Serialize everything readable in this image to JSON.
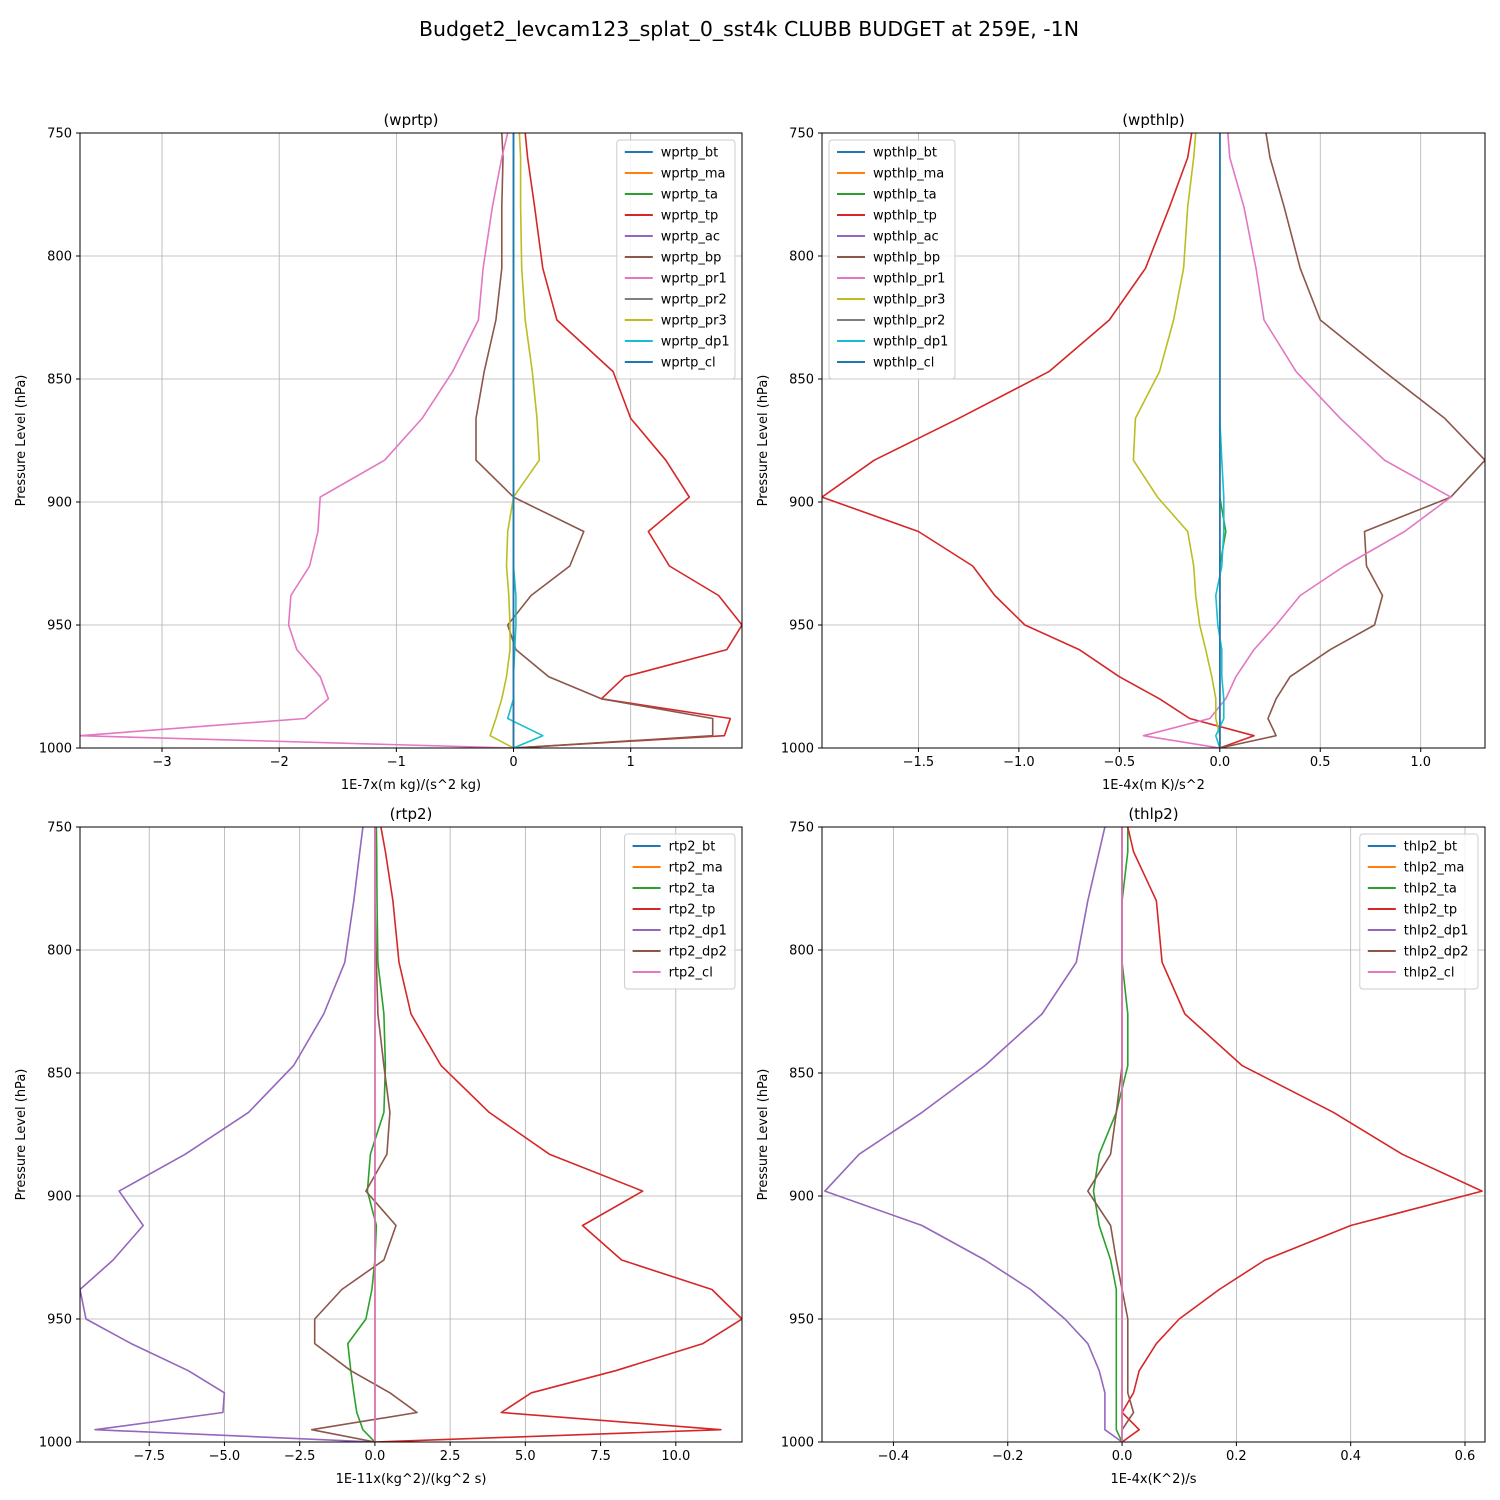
{
  "figure": {
    "title": "Budget2_levcam123_splat_0_sst4k CLUBB BUDGET at 259E, -1N"
  },
  "colors": {
    "c0": "#1f77b4",
    "c1": "#ff7f0e",
    "c2": "#2ca02c",
    "c3": "#d62728",
    "c4": "#9467bd",
    "c5": "#8c564b",
    "c6": "#e377c2",
    "c7": "#7f7f7f",
    "c8": "#bcbd22",
    "c9": "#17becf",
    "grid": "#b0b0b0"
  },
  "chart_data": [
    {
      "type": "line",
      "title": "(wprtp)",
      "xlabel": "1E-7x(m kg)/(s^2 kg)",
      "ylabel": "Pressure Level (hPa)",
      "xlim": [
        -3.7,
        1.95
      ],
      "ylim": [
        1000,
        750
      ],
      "y_inverted": true,
      "xticks": [
        -3,
        -2,
        -1,
        0,
        1
      ],
      "xtick_labels": [
        "−3",
        "−2",
        "−1",
        "0",
        "1"
      ],
      "yticks": [
        750,
        800,
        850,
        900,
        950,
        1000
      ],
      "grid": true,
      "legend_position": "top-right",
      "pressure_levels": [
        750,
        760,
        780,
        805,
        826,
        847,
        866,
        883,
        898,
        912,
        926,
        938,
        950,
        960,
        971,
        980,
        988,
        995,
        1000
      ],
      "series": [
        {
          "name": "wprtp_bt",
          "color_key": "c0",
          "values": [
            0,
            0,
            0,
            0,
            0,
            0,
            0,
            0,
            0,
            0,
            0,
            0,
            0,
            0,
            0,
            0,
            0,
            0,
            0
          ]
        },
        {
          "name": "wprtp_ma",
          "color_key": "c1",
          "values": [
            0,
            0,
            0,
            0,
            0,
            0,
            0,
            0,
            0,
            0,
            0,
            0,
            0,
            0,
            0,
            0,
            0,
            0,
            0
          ]
        },
        {
          "name": "wprtp_ta",
          "color_key": "c2",
          "values": [
            0,
            0,
            0,
            0,
            0,
            0,
            0,
            0,
            0,
            0,
            0,
            0,
            0,
            0,
            0,
            0,
            0,
            0,
            0
          ]
        },
        {
          "name": "wprtp_tp",
          "color_key": "c3",
          "values": [
            0.1,
            0.12,
            0.18,
            0.25,
            0.37,
            0.85,
            1.0,
            1.3,
            1.5,
            1.15,
            1.33,
            1.75,
            1.95,
            1.82,
            0.95,
            0.75,
            1.85,
            1.8,
            0
          ]
        },
        {
          "name": "wprtp_ac",
          "color_key": "c4",
          "values": [
            0,
            0,
            0,
            0,
            0,
            0,
            0,
            0,
            0,
            0,
            0,
            0,
            0,
            0,
            0,
            0,
            0,
            0,
            0
          ]
        },
        {
          "name": "wprtp_bp",
          "color_key": "c5",
          "values": [
            -0.1,
            -0.09,
            -0.1,
            -0.1,
            -0.15,
            -0.25,
            -0.32,
            -0.32,
            0.0,
            0.6,
            0.48,
            0.15,
            -0.05,
            0.02,
            0.3,
            0.75,
            1.7,
            1.7,
            0
          ]
        },
        {
          "name": "wprtp_pr1",
          "color_key": "c6",
          "values": [
            -0.05,
            -0.1,
            -0.18,
            -0.26,
            -0.3,
            -0.52,
            -0.78,
            -1.1,
            -1.65,
            -1.67,
            -1.74,
            -1.9,
            -1.92,
            -1.85,
            -1.65,
            -1.58,
            -1.78,
            -3.7,
            0
          ]
        },
        {
          "name": "wprtp_pr2",
          "color_key": "c7",
          "values": [
            0,
            0,
            0,
            0,
            0,
            0,
            0,
            0,
            0,
            0,
            0,
            0,
            0,
            0,
            0,
            0,
            0,
            0,
            0
          ]
        },
        {
          "name": "wprtp_pr3",
          "color_key": "c8",
          "values": [
            0.05,
            0.06,
            0.06,
            0.07,
            0.1,
            0.16,
            0.2,
            0.22,
            0.0,
            -0.05,
            -0.06,
            -0.04,
            -0.03,
            -0.03,
            -0.06,
            -0.1,
            -0.15,
            -0.2,
            0
          ]
        },
        {
          "name": "wprtp_dp1",
          "color_key": "c9",
          "values": [
            0,
            0,
            0,
            0,
            0,
            0,
            0,
            0,
            0,
            0,
            0,
            0.02,
            0.02,
            0.01,
            0,
            0,
            -0.05,
            0.25,
            0
          ]
        },
        {
          "name": "wprtp_cl",
          "color_key": "c0",
          "values": [
            0,
            0,
            0,
            0,
            0,
            0,
            0,
            0,
            0,
            0,
            0,
            0,
            0,
            0,
            0,
            0,
            0,
            0,
            0
          ]
        }
      ]
    },
    {
      "type": "line",
      "title": "(wpthlp)",
      "xlabel": "1E-4x(m K)/s^2",
      "ylabel": "Pressure Level (hPa)",
      "xlim": [
        -1.98,
        1.32
      ],
      "ylim": [
        1000,
        750
      ],
      "y_inverted": true,
      "xticks": [
        -1.5,
        -1.0,
        -0.5,
        0.0,
        0.5,
        1.0
      ],
      "xtick_labels": [
        "−1.5",
        "−1.0",
        "−0.5",
        "0.0",
        "0.5",
        "1.0"
      ],
      "yticks": [
        750,
        800,
        850,
        900,
        950,
        1000
      ],
      "grid": true,
      "legend_position": "top-left",
      "pressure_levels": [
        750,
        760,
        780,
        805,
        826,
        847,
        866,
        883,
        898,
        912,
        926,
        938,
        950,
        960,
        971,
        980,
        988,
        995,
        1000
      ],
      "series": [
        {
          "name": "wpthlp_bt",
          "color_key": "c0",
          "values": [
            0,
            0,
            0,
            0,
            0,
            0,
            0,
            0,
            0,
            0,
            0,
            0,
            0,
            0,
            0,
            0,
            0,
            0,
            0
          ]
        },
        {
          "name": "wpthlp_ma",
          "color_key": "c1",
          "values": [
            0,
            0,
            0,
            0,
            0,
            0,
            0,
            0,
            0,
            0,
            0,
            0,
            0,
            0,
            0,
            0,
            0,
            0,
            0
          ]
        },
        {
          "name": "wpthlp_ta",
          "color_key": "c2",
          "values": [
            0,
            0,
            0,
            0,
            0,
            0,
            0,
            0,
            0,
            0.03,
            0,
            0,
            0,
            0,
            0,
            0,
            0,
            0,
            0
          ]
        },
        {
          "name": "wpthlp_tp",
          "color_key": "c3",
          "values": [
            -0.14,
            -0.16,
            -0.25,
            -0.37,
            -0.55,
            -0.85,
            -1.3,
            -1.72,
            -1.98,
            -1.5,
            -1.23,
            -1.12,
            -0.97,
            -0.7,
            -0.5,
            -0.3,
            -0.15,
            0.17,
            0
          ]
        },
        {
          "name": "wpthlp_ac",
          "color_key": "c4",
          "values": [
            0,
            0,
            0,
            0,
            0,
            0,
            0,
            0,
            0,
            0,
            0,
            0,
            0,
            0,
            0,
            0,
            0,
            0,
            0
          ]
        },
        {
          "name": "wpthlp_bp",
          "color_key": "c5",
          "values": [
            0.23,
            0.25,
            0.32,
            0.4,
            0.5,
            0.82,
            1.12,
            1.32,
            1.15,
            0.72,
            0.73,
            0.81,
            0.77,
            0.55,
            0.35,
            0.28,
            0.24,
            0.28,
            0
          ]
        },
        {
          "name": "wpthlp_pr1",
          "color_key": "c6",
          "values": [
            0.04,
            0.05,
            0.12,
            0.18,
            0.22,
            0.38,
            0.6,
            0.82,
            1.15,
            0.92,
            0.62,
            0.4,
            0.28,
            0.17,
            0.08,
            0.03,
            -0.05,
            -0.38,
            0
          ]
        },
        {
          "name": "wpthlp_pr3",
          "color_key": "c8",
          "values": [
            -0.12,
            -0.13,
            -0.16,
            -0.18,
            -0.23,
            -0.3,
            -0.42,
            -0.43,
            -0.31,
            -0.16,
            -0.13,
            -0.12,
            -0.1,
            -0.07,
            -0.04,
            -0.02,
            -0.02,
            0.0,
            0
          ]
        },
        {
          "name": "wpthlp_pr2",
          "color_key": "c7",
          "values": [
            0,
            0,
            0,
            0,
            0,
            0,
            0,
            0,
            0,
            0,
            0,
            0,
            0,
            0,
            0,
            0,
            0,
            0,
            0
          ]
        },
        {
          "name": "wpthlp_dp1",
          "color_key": "c9",
          "values": [
            0,
            0,
            0,
            0,
            0,
            0,
            0,
            0.01,
            0.02,
            0.02,
            0.01,
            -0.02,
            -0.01,
            0.01,
            0.01,
            0.02,
            0.02,
            -0.02,
            0
          ]
        },
        {
          "name": "wpthlp_cl",
          "color_key": "c0",
          "values": [
            0,
            0,
            0,
            0,
            0,
            0,
            0,
            0,
            0,
            0,
            0,
            0,
            0,
            0,
            0,
            0,
            0,
            0,
            0
          ]
        }
      ]
    },
    {
      "type": "line",
      "title": "(rtp2)",
      "xlabel": "1E-11x(kg^2)/(kg^2 s)",
      "ylabel": "Pressure Level (hPa)",
      "xlim": [
        -9.8,
        12.2
      ],
      "ylim": [
        1000,
        750
      ],
      "y_inverted": true,
      "xticks": [
        -7.5,
        -5.0,
        -2.5,
        0.0,
        2.5,
        5.0,
        7.5,
        10.0
      ],
      "xtick_labels": [
        "−7.5",
        "−5.0",
        "−2.5",
        "0.0",
        "2.5",
        "5.0",
        "7.5",
        "10.0"
      ],
      "yticks": [
        750,
        800,
        850,
        900,
        950,
        1000
      ],
      "grid": true,
      "legend_position": "top-right",
      "pressure_levels": [
        750,
        760,
        780,
        805,
        826,
        847,
        866,
        883,
        898,
        912,
        926,
        938,
        950,
        960,
        971,
        980,
        988,
        995,
        1000
      ],
      "series": [
        {
          "name": "rtp2_bt",
          "color_key": "c0",
          "values": [
            0,
            0,
            0,
            0,
            0,
            0,
            0,
            0,
            0,
            0,
            0,
            0,
            0,
            0,
            0,
            0,
            0,
            0,
            0
          ]
        },
        {
          "name": "rtp2_ma",
          "color_key": "c1",
          "values": [
            0,
            0,
            0,
            0,
            0,
            0,
            0,
            0,
            0,
            0,
            0,
            0,
            0,
            0,
            0,
            0,
            0,
            0,
            0
          ]
        },
        {
          "name": "rtp2_ta",
          "color_key": "c2",
          "values": [
            0.05,
            0.06,
            0.07,
            0.1,
            0.3,
            0.35,
            0.3,
            -0.15,
            -0.25,
            0.05,
            0,
            -0.1,
            -0.3,
            -0.9,
            -0.8,
            -0.7,
            -0.6,
            -0.4,
            0
          ]
        },
        {
          "name": "rtp2_tp",
          "color_key": "c3",
          "values": [
            0.2,
            0.35,
            0.6,
            0.8,
            1.2,
            2.2,
            3.8,
            5.8,
            8.9,
            6.9,
            8.2,
            11.2,
            12.2,
            10.9,
            8.0,
            5.2,
            4.2,
            11.5,
            0
          ]
        },
        {
          "name": "rtp2_dp1",
          "color_key": "c4",
          "values": [
            -0.4,
            -0.5,
            -0.7,
            -1.0,
            -1.7,
            -2.7,
            -4.2,
            -6.3,
            -8.5,
            -7.7,
            -8.7,
            -9.8,
            -9.6,
            -8.1,
            -6.2,
            -5.0,
            -5.05,
            -9.3,
            0
          ]
        },
        {
          "name": "rtp2_dp2",
          "color_key": "c5",
          "values": [
            0,
            0,
            0,
            0.05,
            0.1,
            0.3,
            0.5,
            0.4,
            -0.3,
            0.7,
            0.3,
            -1.1,
            -2.0,
            -2.0,
            -0.8,
            0.5,
            1.4,
            -2.1,
            0
          ]
        },
        {
          "name": "rtp2_cl",
          "color_key": "c6",
          "values": [
            0,
            0,
            0,
            0,
            0,
            0,
            0,
            0,
            0,
            0,
            0,
            0,
            0,
            0,
            0,
            0,
            0,
            0,
            0
          ]
        }
      ]
    },
    {
      "type": "line",
      "title": "(thlp2)",
      "xlabel": "1E-4x(K^2)/s",
      "ylabel": "Pressure Level (hPa)",
      "xlim": [
        -0.525,
        0.635
      ],
      "ylim": [
        1000,
        750
      ],
      "y_inverted": true,
      "xticks": [
        -0.4,
        -0.2,
        0.0,
        0.2,
        0.4,
        0.6
      ],
      "xtick_labels": [
        "−0.4",
        "−0.2",
        "0.0",
        "0.2",
        "0.4",
        "0.6"
      ],
      "yticks": [
        750,
        800,
        850,
        900,
        950,
        1000
      ],
      "grid": true,
      "legend_position": "top-right",
      "pressure_levels": [
        750,
        760,
        780,
        805,
        826,
        847,
        866,
        883,
        898,
        912,
        926,
        938,
        950,
        960,
        971,
        980,
        988,
        995,
        1000
      ],
      "series": [
        {
          "name": "thlp2_bt",
          "color_key": "c0",
          "values": [
            0,
            0,
            0,
            0,
            0,
            0,
            0,
            0,
            0,
            0,
            0,
            0,
            0,
            0,
            0,
            0,
            0,
            0,
            0
          ]
        },
        {
          "name": "thlp2_ma",
          "color_key": "c1",
          "values": [
            0,
            0,
            0,
            0,
            0,
            0,
            0,
            0,
            0,
            0,
            0,
            0,
            0,
            0,
            0,
            0,
            0,
            0,
            0
          ]
        },
        {
          "name": "thlp2_ta",
          "color_key": "c2",
          "values": [
            0.01,
            0.01,
            0.0,
            0.0,
            0.01,
            0.01,
            -0.01,
            -0.04,
            -0.05,
            -0.04,
            -0.02,
            -0.01,
            -0.01,
            -0.01,
            -0.01,
            -0.01,
            -0.01,
            -0.01,
            0
          ]
        },
        {
          "name": "thlp2_tp",
          "color_key": "c3",
          "values": [
            0.01,
            0.02,
            0.06,
            0.07,
            0.11,
            0.21,
            0.37,
            0.49,
            0.63,
            0.4,
            0.25,
            0.17,
            0.1,
            0.06,
            0.03,
            0.02,
            0.0,
            0.03,
            0
          ]
        },
        {
          "name": "thlp2_dp1",
          "color_key": "c4",
          "values": [
            -0.03,
            -0.04,
            -0.06,
            -0.08,
            -0.14,
            -0.24,
            -0.35,
            -0.46,
            -0.52,
            -0.35,
            -0.24,
            -0.16,
            -0.1,
            -0.06,
            -0.04,
            -0.03,
            -0.03,
            -0.03,
            0
          ]
        },
        {
          "name": "thlp2_dp2",
          "color_key": "c5",
          "values": [
            0,
            0,
            0,
            0,
            0,
            0,
            -0.01,
            -0.02,
            -0.06,
            -0.02,
            -0.01,
            0.0,
            0.01,
            0.01,
            0.01,
            0.01,
            0.02,
            0.0,
            0
          ]
        },
        {
          "name": "thlp2_cl",
          "color_key": "c6",
          "values": [
            0,
            0,
            0,
            0,
            0,
            0,
            0,
            0,
            0,
            0,
            0,
            0,
            0,
            0,
            0,
            0,
            0,
            0,
            0
          ]
        }
      ]
    }
  ]
}
